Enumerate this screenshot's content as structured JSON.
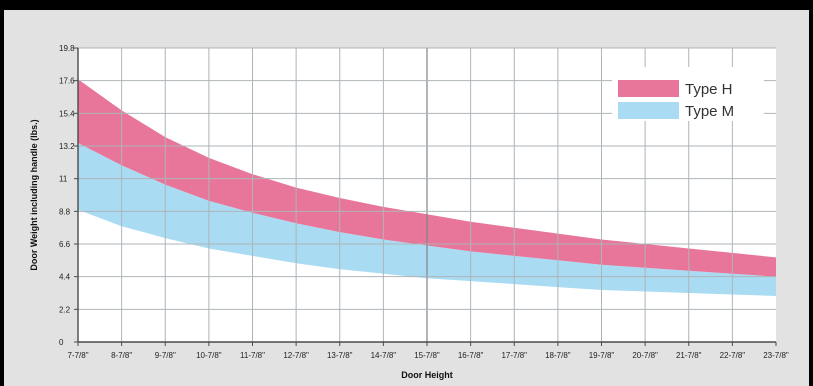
{
  "chart_data": {
    "type": "area",
    "title": "",
    "xlabel": "Door Height",
    "ylabel": "Door Weight including handle (lbs.)",
    "categories": [
      "7-7/8\"",
      "8-7/8\"",
      "9-7/8\"",
      "10-7/8\"",
      "11-7/8\"",
      "12-7/8\"",
      "13-7/8\"",
      "14-7/8\"",
      "15-7/8\"",
      "16-7/8\"",
      "17-7/8\"",
      "18-7/8\"",
      "19-7/8\"",
      "20-7/8\"",
      "21-7/8\"",
      "22-7/8\"",
      "23-7/8\""
    ],
    "yticks": [
      "0",
      "2.2",
      "4.4",
      "6.6",
      "8.8",
      "11",
      "13.2",
      "15.4",
      "17.6",
      "19.8"
    ],
    "ylim": [
      0,
      19.8
    ],
    "grid": true,
    "legend_position": "top-right",
    "series": [
      {
        "name": "Type H",
        "color": "#e8769a",
        "upper": [
          17.7,
          15.6,
          13.8,
          12.4,
          11.3,
          10.4,
          9.7,
          9.1,
          8.6,
          8.1,
          7.7,
          7.3,
          6.9,
          6.6,
          6.3,
          6.0,
          5.7
        ],
        "lower": [
          13.4,
          11.9,
          10.6,
          9.5,
          8.7,
          8.0,
          7.4,
          6.9,
          6.5,
          6.1,
          5.8,
          5.5,
          5.2,
          5.0,
          4.8,
          4.6,
          4.4
        ]
      },
      {
        "name": "Type M",
        "color": "#a9dcf3",
        "upper": [
          13.4,
          11.9,
          10.6,
          9.5,
          8.7,
          8.0,
          7.4,
          6.9,
          6.5,
          6.1,
          5.8,
          5.5,
          5.2,
          5.0,
          4.8,
          4.6,
          4.4
        ],
        "lower": [
          8.9,
          7.8,
          7.0,
          6.3,
          5.8,
          5.3,
          4.9,
          4.6,
          4.3,
          4.1,
          3.9,
          3.7,
          3.5,
          3.4,
          3.3,
          3.2,
          3.1
        ]
      }
    ]
  }
}
